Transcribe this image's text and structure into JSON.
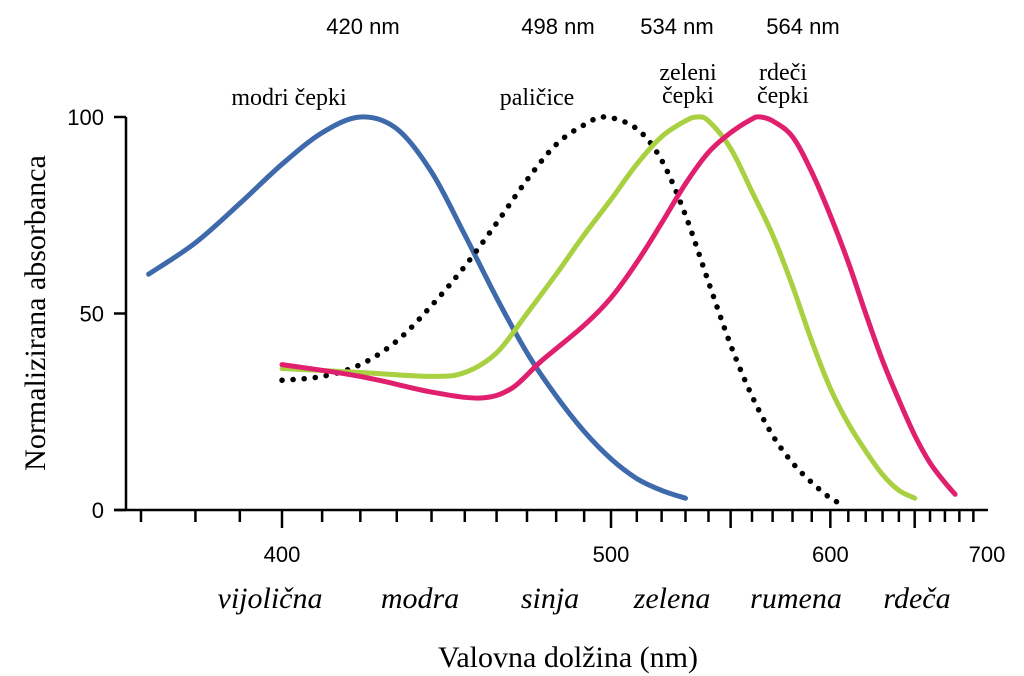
{
  "chart_data": {
    "type": "line",
    "title": "",
    "xlabel": "Valovna dolžina (nm)",
    "ylabel": "Normalizirana absorbanca",
    "x_scale": "reciprocal",
    "xlim": [
      368,
      700
    ],
    "ylim": [
      0,
      100
    ],
    "grid": false,
    "legend": "none",
    "x_ticks": {
      "labeled": [
        400,
        500,
        600,
        700
      ],
      "major": [
        400,
        500,
        550,
        600,
        650,
        700
      ],
      "minor_step": 10,
      "minor_range": [
        370,
        700
      ]
    },
    "y_ticks": [
      0,
      50,
      100
    ],
    "peak_labels": [
      {
        "text": "420 nm",
        "x": 420
      },
      {
        "text": "498 nm",
        "x": 498
      },
      {
        "text": "534 nm",
        "x": 534
      },
      {
        "text": "564 nm",
        "x": 564
      }
    ],
    "curve_labels": [
      {
        "lines": [
          "modri čepki"
        ],
        "x": 420
      },
      {
        "lines": [
          "paličice"
        ],
        "x": 487
      },
      {
        "lines": [
          "zeleni",
          "čepki"
        ],
        "x": 534
      },
      {
        "lines": [
          "rdeči",
          "čepki"
        ],
        "x": 564
      }
    ],
    "color_bands": [
      {
        "text": "vijolična",
        "x": 393
      },
      {
        "text": "modra",
        "x": 439
      },
      {
        "text": "sinja",
        "x": 485
      },
      {
        "text": "zelena",
        "x": 530
      },
      {
        "text": "rumena",
        "x": 580
      },
      {
        "text": "rdeča",
        "x": 650
      }
    ],
    "series": [
      {
        "name": "modri čepki",
        "color": "#3E6AAB",
        "style": "solid",
        "points": [
          [
            370,
            60
          ],
          [
            380,
            68
          ],
          [
            390,
            78
          ],
          [
            400,
            88
          ],
          [
            410,
            96
          ],
          [
            420,
            100
          ],
          [
            430,
            97
          ],
          [
            440,
            86
          ],
          [
            450,
            70
          ],
          [
            460,
            54
          ],
          [
            470,
            40
          ],
          [
            480,
            29
          ],
          [
            490,
            20
          ],
          [
            500,
            13
          ],
          [
            510,
            8
          ],
          [
            520,
            5
          ],
          [
            530,
            3
          ]
        ]
      },
      {
        "name": "paličice",
        "color": "#000000",
        "style": "dotted",
        "points": [
          [
            400,
            33
          ],
          [
            410,
            34
          ],
          [
            420,
            37
          ],
          [
            430,
            43
          ],
          [
            440,
            52
          ],
          [
            450,
            62
          ],
          [
            460,
            73
          ],
          [
            470,
            84
          ],
          [
            480,
            93
          ],
          [
            490,
            98
          ],
          [
            498,
            100
          ],
          [
            510,
            97
          ],
          [
            520,
            89
          ],
          [
            530,
            75
          ],
          [
            540,
            58
          ],
          [
            550,
            42
          ],
          [
            560,
            29
          ],
          [
            570,
            19
          ],
          [
            580,
            12
          ],
          [
            590,
            7
          ],
          [
            600,
            3
          ],
          [
            604,
            2
          ]
        ]
      },
      {
        "name": "zeleni čepki",
        "color": "#A8D040",
        "style": "solid",
        "points": [
          [
            400,
            36
          ],
          [
            420,
            35
          ],
          [
            440,
            34
          ],
          [
            450,
            35
          ],
          [
            460,
            40
          ],
          [
            470,
            50
          ],
          [
            480,
            60
          ],
          [
            490,
            70
          ],
          [
            500,
            79
          ],
          [
            510,
            88
          ],
          [
            520,
            95
          ],
          [
            530,
            99
          ],
          [
            535,
            100
          ],
          [
            540,
            99
          ],
          [
            550,
            92
          ],
          [
            560,
            81
          ],
          [
            570,
            70
          ],
          [
            580,
            57
          ],
          [
            590,
            43
          ],
          [
            600,
            31
          ],
          [
            610,
            22
          ],
          [
            620,
            15
          ],
          [
            630,
            9
          ],
          [
            640,
            5
          ],
          [
            650,
            3
          ]
        ]
      },
      {
        "name": "rdeči čepki",
        "color": "#E0206E",
        "style": "solid",
        "points": [
          [
            400,
            37
          ],
          [
            420,
            34
          ],
          [
            440,
            30
          ],
          [
            455,
            28.5
          ],
          [
            465,
            31
          ],
          [
            475,
            38
          ],
          [
            490,
            47
          ],
          [
            500,
            54
          ],
          [
            510,
            63
          ],
          [
            520,
            73
          ],
          [
            530,
            83
          ],
          [
            540,
            91
          ],
          [
            550,
            96
          ],
          [
            560,
            99.5
          ],
          [
            564,
            100
          ],
          [
            570,
            99
          ],
          [
            580,
            95
          ],
          [
            590,
            86
          ],
          [
            600,
            75
          ],
          [
            610,
            63
          ],
          [
            620,
            50
          ],
          [
            630,
            38
          ],
          [
            640,
            28
          ],
          [
            650,
            19
          ],
          [
            660,
            12
          ],
          [
            670,
            7
          ],
          [
            677,
            4
          ]
        ]
      }
    ]
  }
}
